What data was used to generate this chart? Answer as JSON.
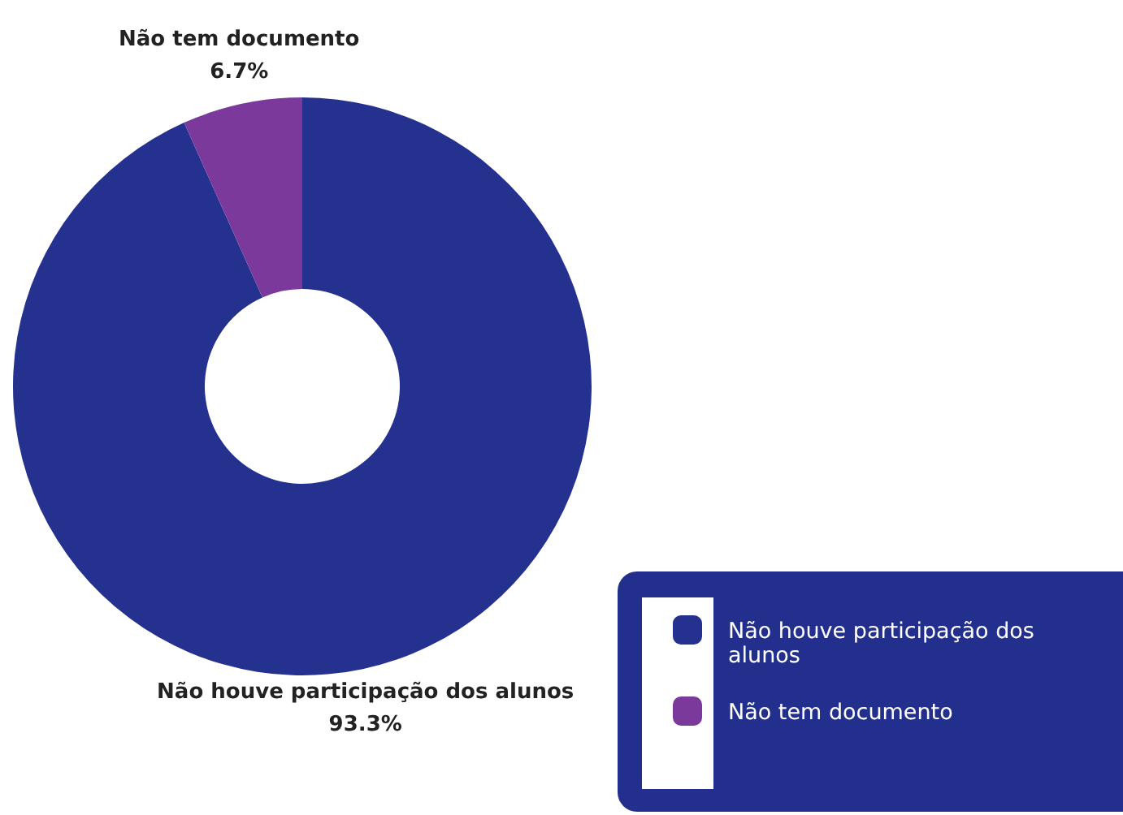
{
  "chart_data": {
    "type": "donut",
    "categories": [
      "Não houve participação dos alunos",
      "Não tem documento"
    ],
    "values": [
      93.3,
      6.7
    ],
    "colors": [
      "#25318f",
      "#7b3a9b"
    ],
    "value_labels": [
      "93.3%",
      "6.7%"
    ],
    "legend": "bottom right"
  }
}
